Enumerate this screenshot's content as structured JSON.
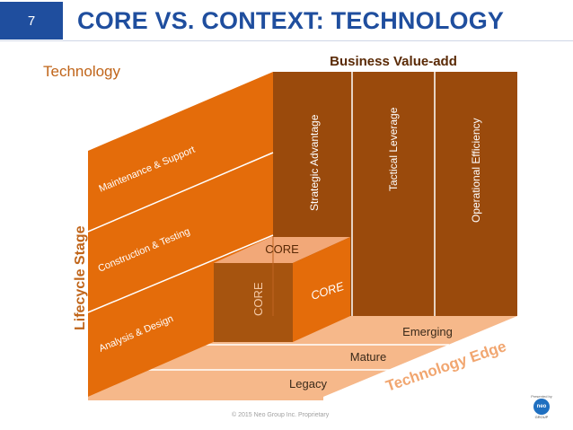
{
  "header": {
    "slide_number": "7",
    "title": "CORE VS. CONTEXT: TECHNOLOGY"
  },
  "subtitle": "Technology",
  "diagram": {
    "top_label": "Business Value-add",
    "left_axis_label": "Lifecycle Stage",
    "bottom_axis_label": "Technology Edge",
    "value_columns": [
      "Strategic Advantage",
      "Tactical Leverage",
      "Operational Efficiency"
    ],
    "lifecycle_stages": [
      "Maintenance & Support",
      "Construction & Testing",
      "Analysis & Design"
    ],
    "technology_edges": [
      "Emerging",
      "Mature",
      "Legacy"
    ],
    "core_labels": {
      "top": "CORE",
      "left": "CORE",
      "right": "CORE"
    },
    "colors": {
      "dark_orange": "#9a4a0c",
      "orange": "#e46c0a",
      "light_orange": "#f6b88a",
      "header_blue": "#1f4e9e",
      "core_box": "#a6540f"
    }
  },
  "footer": {
    "copyright": "© 2015 Neo Group Inc. Proprietary",
    "logo_tagline": "Presented by",
    "logo_text": "neo",
    "logo_subtext": "GROUP"
  }
}
